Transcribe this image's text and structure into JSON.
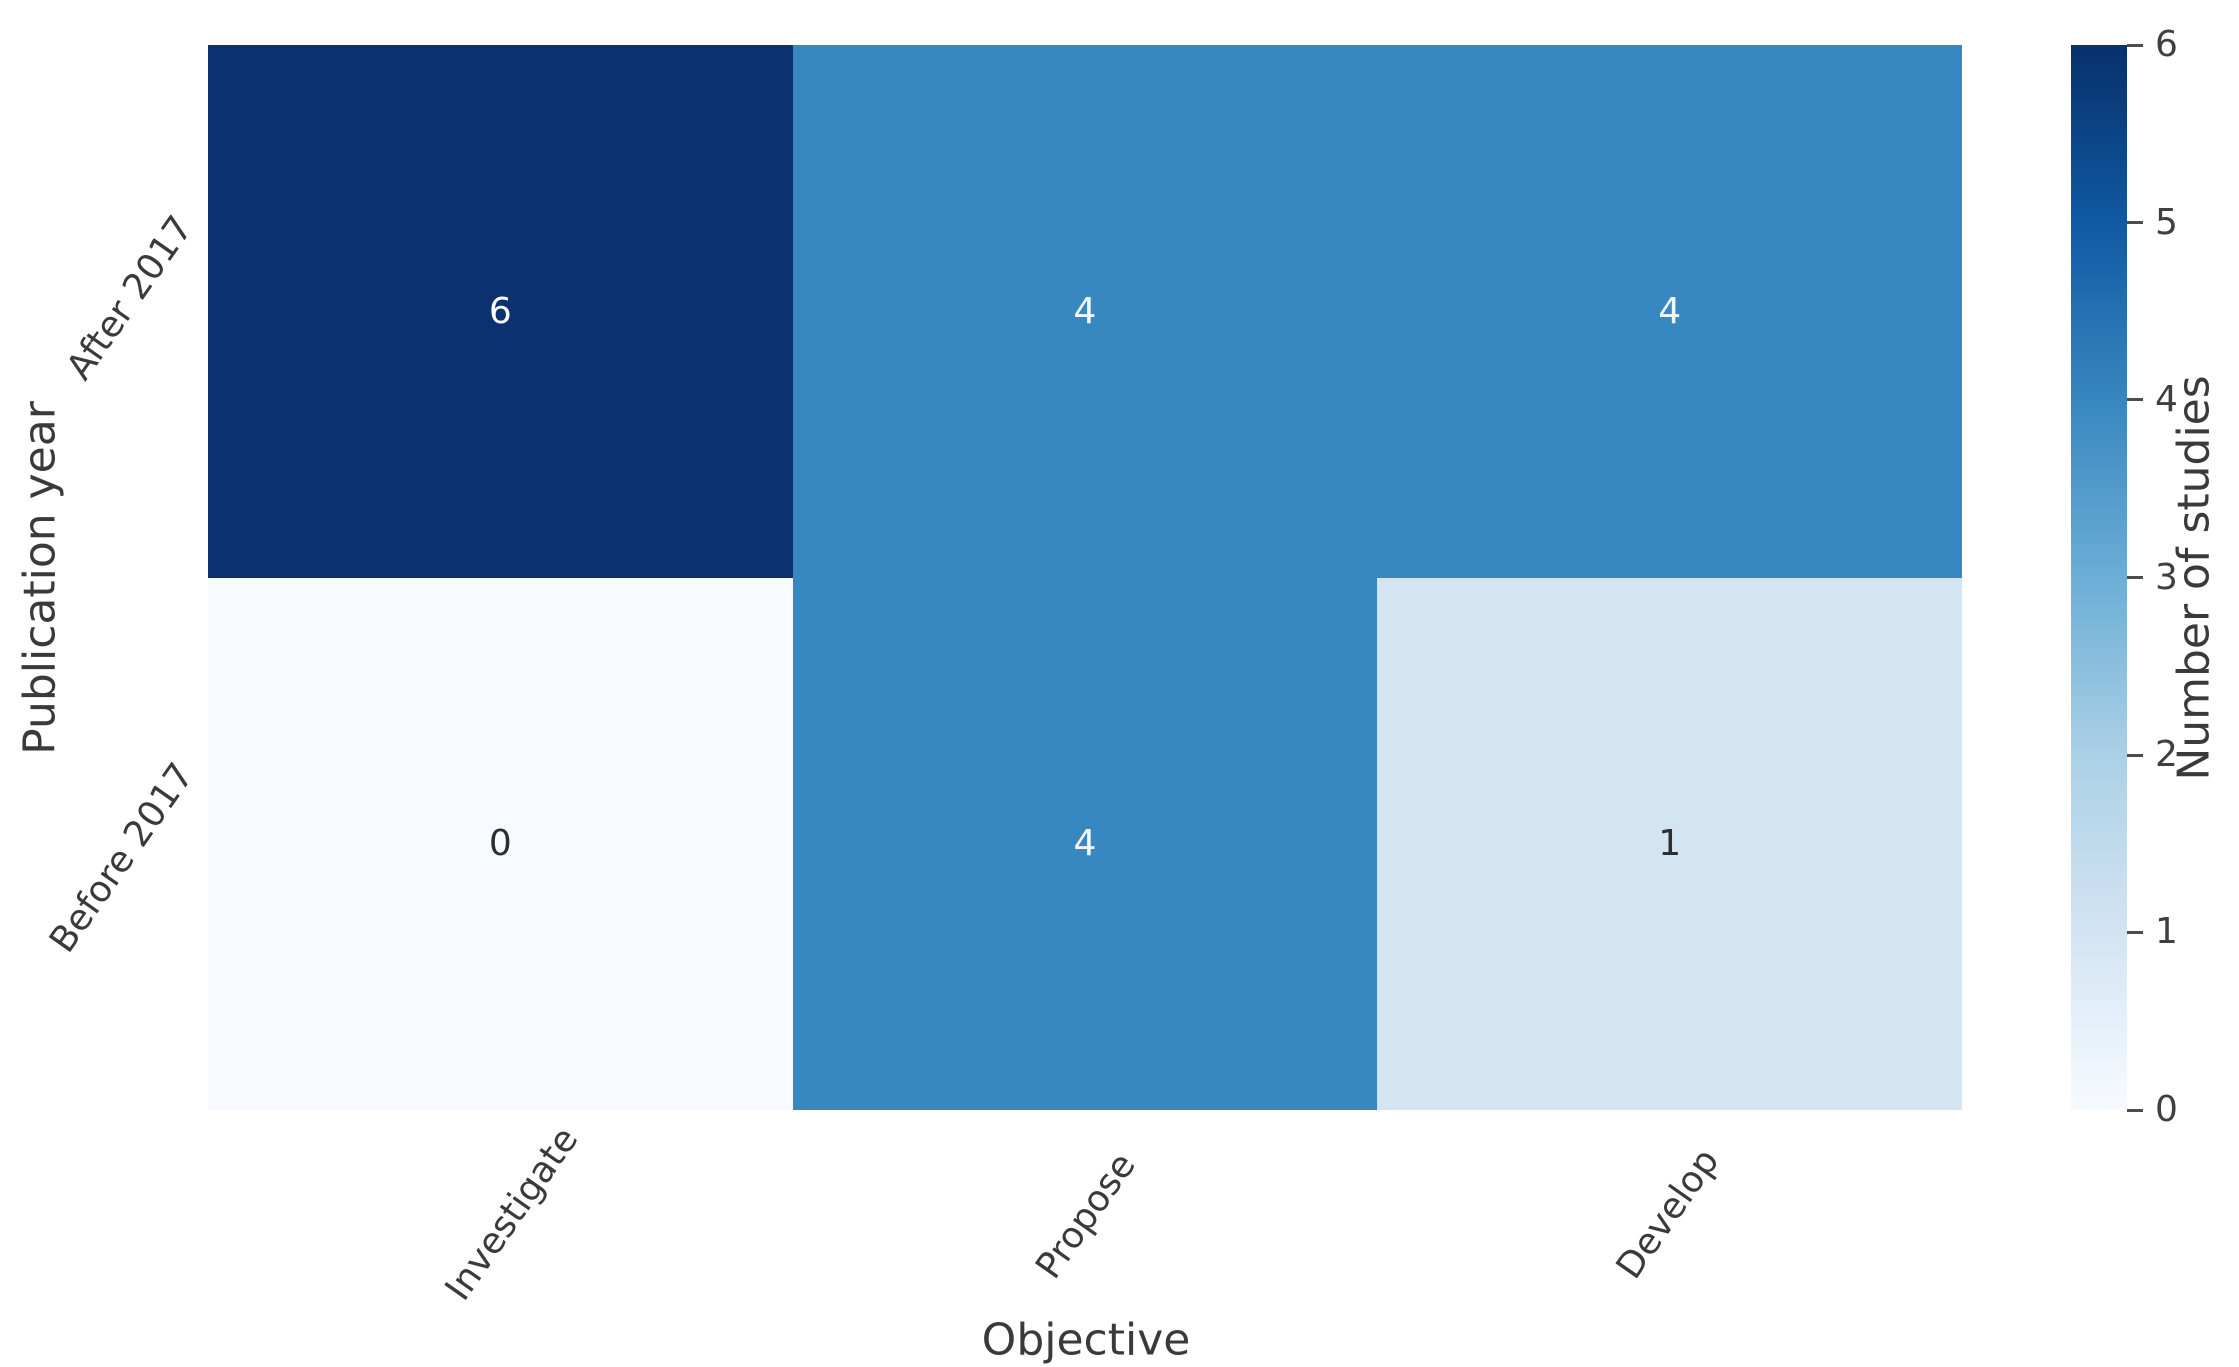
{
  "chart_data": {
    "type": "heatmap",
    "xlabel": "Objective",
    "ylabel": "Publication year",
    "x_categories": [
      "Investigate",
      "Propose",
      "Develop"
    ],
    "y_categories": [
      "After 2017",
      "Before 2017"
    ],
    "values": [
      [
        6,
        4,
        4
      ],
      [
        0,
        4,
        1
      ]
    ],
    "cell_styles": [
      {
        "bg": "#0b326e",
        "fg": "#ffffff"
      },
      {
        "bg": "#3787c0",
        "fg": "#f2f7fc"
      },
      {
        "bg": "#3787c0",
        "fg": "#f2f7fc"
      },
      {
        "bg": "#f7fbff",
        "fg": "#2e2e2e"
      },
      {
        "bg": "#3787c0",
        "fg": "#f2f7fc"
      },
      {
        "bg": "#d3e4f3",
        "fg": "#2e2e2e"
      }
    ],
    "colorbar": {
      "label": "Number of studies",
      "min": 0,
      "max": 6,
      "ticks": [
        0,
        1,
        2,
        3,
        4,
        5,
        6
      ],
      "position": "right",
      "colormap": "Blues",
      "gradient_stops_top_to_bottom": [
        "#08306b",
        "#0f59a3",
        "#3787c0",
        "#6baed6",
        "#abd0e6",
        "#d3e4f3",
        "#f7fbff"
      ]
    },
    "layout": {
      "grid": "off",
      "tick_label_rotation_deg": 55,
      "background": "#ffffff"
    }
  }
}
